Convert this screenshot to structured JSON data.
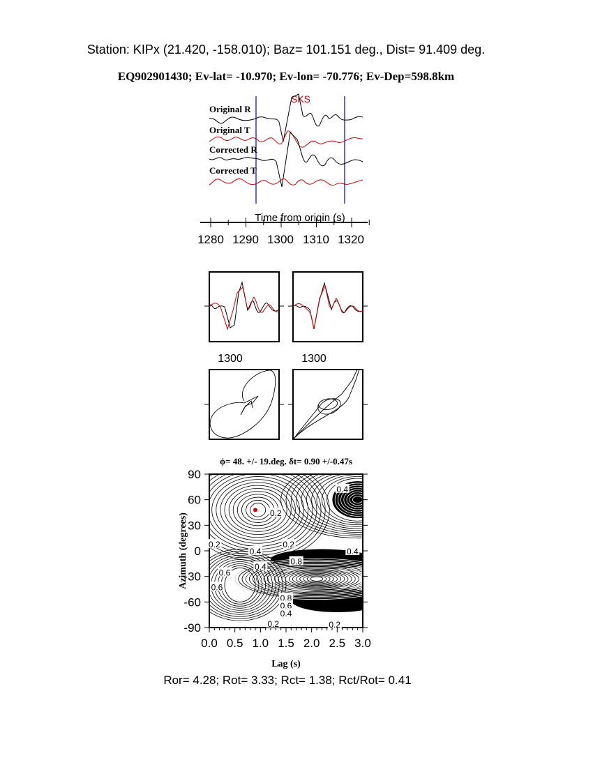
{
  "header": {
    "station_line": "Station: KIPx (21.420, -158.010); Baz=  101.151 deg., Dist=   91.409 deg.",
    "event_line": "EQ902901430; Ev-lat= -10.970; Ev-lon= -70.776; Ev-Dep=598.8km"
  },
  "colors": {
    "radial": "#000000",
    "transverse": "#cc0000",
    "window": "#0000cc",
    "best_fit": "#dd0000"
  },
  "chart_data": [
    {
      "type": "line",
      "phase_label": "SKS",
      "trace_labels": [
        "Original R",
        "Original T",
        "Corrected R",
        "Corrected T"
      ],
      "xlabel": "Time from origin (s)",
      "xticks": [
        "1280",
        "1290",
        "1300",
        "1310",
        "1320"
      ],
      "xlim": [
        1280,
        1325
      ],
      "window": [
        1293,
        1318.4
      ]
    },
    {
      "type": "line",
      "panels": [
        "original R/T overlay",
        "corrected R/T overlay"
      ],
      "xtick_label": "1300"
    },
    {
      "type": "scatter",
      "panels": [
        "original particle motion",
        "corrected particle motion"
      ]
    },
    {
      "type": "heatmap",
      "title": "ϕ= 48. +/- 19.deg. δt= 0.90 +/-0.47s",
      "xlabel": "Lag (s)",
      "ylabel": "Azimuth (degrees)",
      "xticks": [
        "0.0",
        "0.5",
        "1.0",
        "1.5",
        "2.0",
        "2.5",
        "3.0"
      ],
      "yticks": [
        "90",
        "60",
        "30",
        "0",
        "-30",
        "-60",
        "-90"
      ],
      "xlim": [
        0,
        3
      ],
      "ylim": [
        -90,
        90
      ],
      "best_fit": {
        "lag": 0.9,
        "azimuth": 48
      },
      "contour_labels": [
        "0.4",
        "0.2",
        "0.2",
        "0.2",
        "0.4",
        "0.8",
        "0.6",
        "0.4",
        "0.6",
        "0.4",
        "0.8",
        "0.6",
        "0.4",
        "0.2",
        "0.2"
      ]
    }
  ],
  "footer": {
    "ratios": "Ror= 4.28; Rot= 3.33; Rct= 1.38; Rct/Rot= 0.41"
  }
}
